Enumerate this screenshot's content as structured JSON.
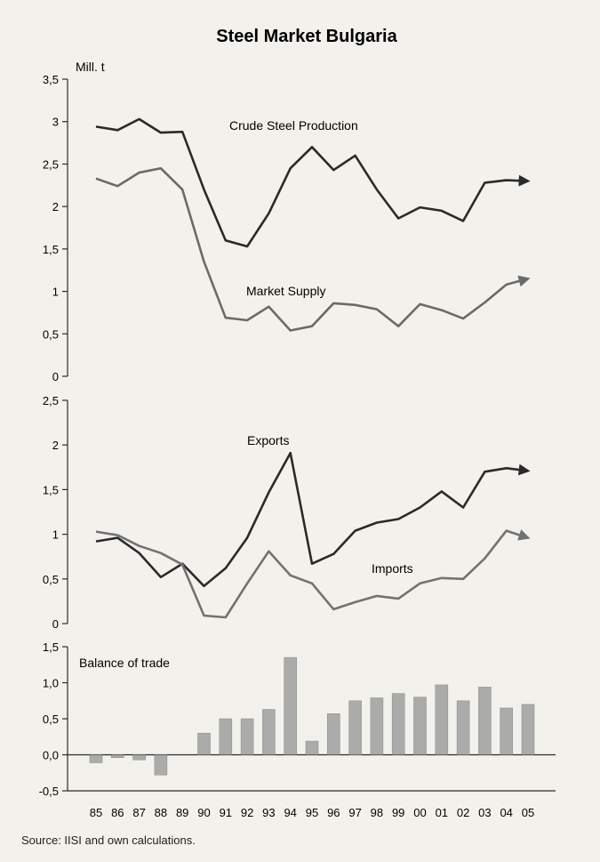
{
  "source_note": "Source: IISI and own calculations.",
  "chart_data": [
    {
      "type": "line",
      "title": "Steel Market Bulgaria",
      "ylabel": "Mill. t",
      "ylim": [
        0,
        3.5
      ],
      "yticks": [
        "3,5",
        "3",
        "2,5",
        "2",
        "1,5",
        "1",
        "0,5",
        "0"
      ],
      "x": [
        "85",
        "86",
        "87",
        "88",
        "89",
        "90",
        "91",
        "92",
        "93",
        "94",
        "95",
        "96",
        "97",
        "98",
        "99",
        "00",
        "01",
        "02",
        "03",
        "04",
        "05"
      ],
      "series": [
        {
          "name": "Crude Steel Production",
          "color": "#2a2a2a",
          "values": [
            2.94,
            2.9,
            3.03,
            2.87,
            2.88,
            2.2,
            1.6,
            1.53,
            1.92,
            2.45,
            2.7,
            2.43,
            2.6,
            2.2,
            1.86,
            1.99,
            1.95,
            1.83,
            2.28,
            2.31,
            2.3
          ]
        },
        {
          "name": "Market Supply",
          "color": "#6a6a6a",
          "values": [
            2.33,
            2.24,
            2.4,
            2.45,
            2.2,
            1.35,
            0.69,
            0.66,
            0.82,
            0.54,
            0.59,
            0.86,
            0.84,
            0.79,
            0.59,
            0.85,
            0.78,
            0.68,
            0.87,
            1.08,
            1.15
          ]
        }
      ]
    },
    {
      "type": "line",
      "ylim": [
        0,
        2.5
      ],
      "yticks": [
        "2,5",
        "2",
        "1,5",
        "1",
        "0,5",
        "0"
      ],
      "x": [
        "85",
        "86",
        "87",
        "88",
        "89",
        "90",
        "91",
        "92",
        "93",
        "94",
        "95",
        "96",
        "97",
        "98",
        "99",
        "00",
        "01",
        "02",
        "03",
        "04",
        "05"
      ],
      "series": [
        {
          "name": "Exports",
          "color": "#2a2a2a",
          "values": [
            0.92,
            0.96,
            0.79,
            0.52,
            0.67,
            0.42,
            0.62,
            0.96,
            1.47,
            1.91,
            0.67,
            0.78,
            1.04,
            1.13,
            1.17,
            1.3,
            1.48,
            1.3,
            1.7,
            1.74,
            1.71
          ]
        },
        {
          "name": "Imports",
          "color": "#727272",
          "values": [
            1.03,
            0.99,
            0.87,
            0.79,
            0.66,
            0.09,
            0.07,
            0.45,
            0.81,
            0.54,
            0.45,
            0.16,
            0.24,
            0.31,
            0.28,
            0.45,
            0.51,
            0.5,
            0.73,
            1.04,
            0.96
          ]
        }
      ]
    },
    {
      "type": "bar",
      "title": "Balance of trade",
      "ylim": [
        -0.5,
        1.5
      ],
      "yticks": [
        "1,5",
        "1,0",
        "0,5",
        "0,0",
        "-0,5"
      ],
      "categories": [
        "85",
        "86",
        "87",
        "88",
        "89",
        "90",
        "91",
        "92",
        "93",
        "94",
        "95",
        "96",
        "97",
        "98",
        "99",
        "00",
        "01",
        "02",
        "03",
        "04",
        "05"
      ],
      "values": [
        -0.11,
        -0.04,
        -0.07,
        -0.28,
        0.0,
        0.3,
        0.5,
        0.5,
        0.63,
        1.35,
        0.19,
        0.57,
        0.75,
        0.79,
        0.85,
        0.8,
        0.97,
        0.75,
        0.94,
        0.65,
        0.7
      ],
      "color": "#9a9a9a"
    }
  ]
}
